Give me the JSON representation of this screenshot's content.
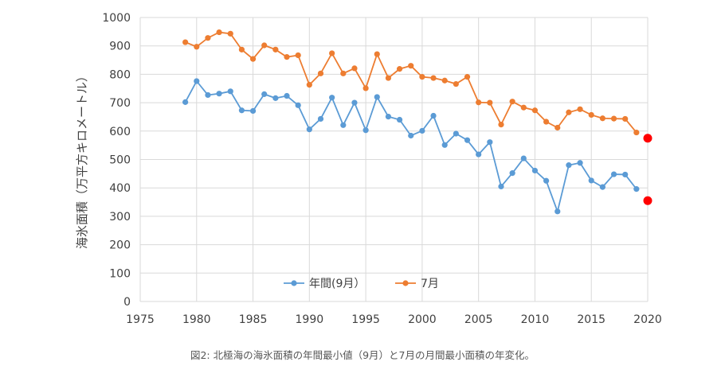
{
  "caption": "図2: 北極海の海氷面積の年間最小値（9月）と7月の月間最小面積の年変化。",
  "chart_data": {
    "type": "line",
    "ylabel": "海氷面積（万平方キロメートル）",
    "xlabel": "",
    "xlim": [
      1975,
      2020
    ],
    "ylim": [
      0,
      1000
    ],
    "x_ticks": [
      1975,
      1980,
      1985,
      1990,
      1995,
      2000,
      2005,
      2010,
      2015,
      2020
    ],
    "y_ticks": [
      0,
      100,
      200,
      300,
      400,
      500,
      600,
      700,
      800,
      900,
      1000
    ],
    "grid": "vertical and horizontal",
    "legend": {
      "position": "bottom-center"
    },
    "x": [
      1979,
      1980,
      1981,
      1982,
      1983,
      1984,
      1985,
      1986,
      1987,
      1988,
      1989,
      1990,
      1991,
      1992,
      1993,
      1994,
      1995,
      1996,
      1997,
      1998,
      1999,
      2000,
      2001,
      2002,
      2003,
      2004,
      2005,
      2006,
      2007,
      2008,
      2009,
      2010,
      2011,
      2012,
      2013,
      2014,
      2015,
      2016,
      2017,
      2018,
      2019
    ],
    "series": [
      {
        "name": "年間(9月）",
        "color": "#5b9bd5",
        "values": [
          702,
          776,
          727,
          732,
          740,
          673,
          671,
          730,
          716,
          724,
          691,
          606,
          643,
          718,
          621,
          700,
          603,
          720,
          651,
          640,
          584,
          601,
          654,
          551,
          591,
          568,
          518,
          561,
          405,
          452,
          504,
          461,
          425,
          317,
          480,
          488,
          426,
          403,
          448,
          447,
          396
        ]
      },
      {
        "name": "7月",
        "color": "#ed7d31",
        "values": [
          913,
          897,
          928,
          948,
          943,
          887,
          854,
          902,
          887,
          861,
          867,
          763,
          803,
          874,
          803,
          821,
          751,
          871,
          787,
          819,
          830,
          791,
          787,
          778,
          766,
          791,
          701,
          700,
          623,
          704,
          683,
          673,
          633,
          612,
          666,
          677,
          657,
          645,
          644,
          643,
          595
        ]
      }
    ],
    "highlight_2020": {
      "year": 2020,
      "color": "#ff0000",
      "values": [
        355,
        575
      ]
    }
  }
}
